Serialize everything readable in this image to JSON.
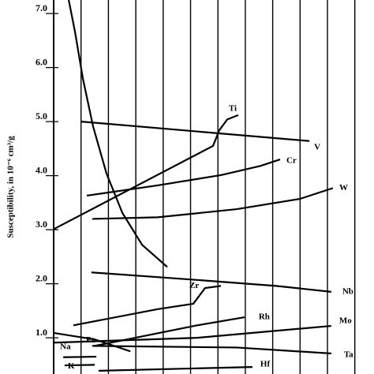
{
  "chart_data": {
    "type": "line",
    "ylabel": "Susceptibility, in 10⁻⁶ cm³/g",
    "xlim": [
      -1.96,
      11.7
    ],
    "xticks": [
      0,
      1,
      2,
      3,
      4,
      5,
      6,
      7,
      8,
      9,
      10,
      11
    ],
    "ylim": [
      0.33,
      7.25
    ],
    "yticks": [
      {
        "value": 1,
        "label": "1.0"
      },
      {
        "value": 2,
        "label": "2.0"
      },
      {
        "value": 3,
        "label": "3.0"
      },
      {
        "value": 4,
        "label": "4.0"
      },
      {
        "value": 5,
        "label": "5.0"
      },
      {
        "value": 6,
        "label": "6.0"
      },
      {
        "value": 7,
        "label": "7.0"
      }
    ],
    "color": "#000000",
    "series": [
      {
        "x": [
          0.55,
          0.78,
          1.07,
          1.44,
          1.93,
          2.51,
          3.23,
          4.15
        ],
        "values": [
          7.25,
          6.66,
          5.79,
          4.91,
          4.04,
          3.31,
          2.72,
          2.31
        ]
      },
      {
        "name": "V",
        "x": [
          1.01,
          9.34
        ],
        "values": [
          5.0,
          4.64
        ]
      },
      {
        "name": "Ti",
        "x": [
          0,
          5.82,
          6.05,
          6.34,
          6.74
        ],
        "values": [
          3.01,
          4.55,
          4.84,
          5.04,
          5.12
        ]
      },
      {
        "name": "Cr",
        "x": [
          1.21,
          3.8,
          6.11,
          7.55,
          8.27
        ],
        "values": [
          3.63,
          3.82,
          4.01,
          4.18,
          4.3
        ]
      },
      {
        "name": "W",
        "x": [
          1.41,
          3.8,
          6.69,
          8.99,
          10.2
        ],
        "values": [
          3.2,
          3.23,
          3.38,
          3.57,
          3.77
        ]
      },
      {
        "name": "Nb",
        "x": [
          1.38,
          5.24,
          8.13,
          10.14
        ],
        "values": [
          2.21,
          2.07,
          1.96,
          1.85
        ]
      },
      {
        "name": "Zr",
        "x": [
          0.72,
          3.8,
          5.1,
          5.53,
          6.11
        ],
        "values": [
          1.23,
          1.53,
          1.63,
          1.92,
          1.96
        ]
      },
      {
        "name": "Rh",
        "x": [
          1.5,
          5.24,
          6.97
        ],
        "values": [
          0.85,
          1.23,
          1.38
        ]
      },
      {
        "name": "Pt",
        "x": [
          0,
          1.5,
          2.8
        ],
        "values": [
          1.09,
          0.97,
          0.75
        ]
      },
      {
        "name": "Mo",
        "x": [
          0,
          5.24,
          10.14
        ],
        "values": [
          0.91,
          1.0,
          1.22
        ]
      },
      {
        "name": "Ta",
        "x": [
          1.41,
          6.69,
          10.14
        ],
        "values": [
          0.85,
          0.82,
          0.71
        ]
      },
      {
        "name": "Na",
        "x": [
          0.35,
          1.56
        ],
        "values": [
          0.64,
          0.65
        ]
      },
      {
        "name": "Hf",
        "x": [
          1.64,
          7.26
        ],
        "values": [
          0.39,
          0.46
        ]
      },
      {
        "name": "K",
        "x": [
          0.4,
          1.5
        ],
        "values": [
          0.49,
          0.5
        ]
      }
    ]
  }
}
